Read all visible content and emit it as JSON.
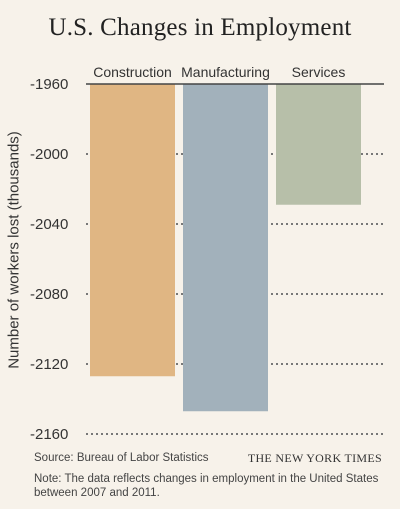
{
  "chart_data": {
    "type": "bar",
    "title": "U.S. Changes in Employment",
    "ylabel": "Number of workers lost (thousands)",
    "xlabel": "",
    "categories": [
      "Construction",
      "Manufacturing",
      "Services"
    ],
    "values": [
      -2127,
      -2147,
      -2029
    ],
    "colors": [
      "#e0b683",
      "#a2b1bb",
      "#b7bfa9"
    ],
    "ylim": [
      -2160,
      -1960
    ],
    "yticks": [
      -1960,
      -2000,
      -2040,
      -2080,
      -2120,
      -2160
    ],
    "ytick_labels": [
      "-1960",
      "-2000",
      "-2040",
      "-2080",
      "-2120",
      "-2160"
    ],
    "grid": true,
    "bar_origin": "top"
  },
  "source": "Source: Bureau of Labor Statistics",
  "publisher": "THE NEW YORK TIMES",
  "note": "Note: The data reflects changes in employment in the United States between 2007 and 2011."
}
